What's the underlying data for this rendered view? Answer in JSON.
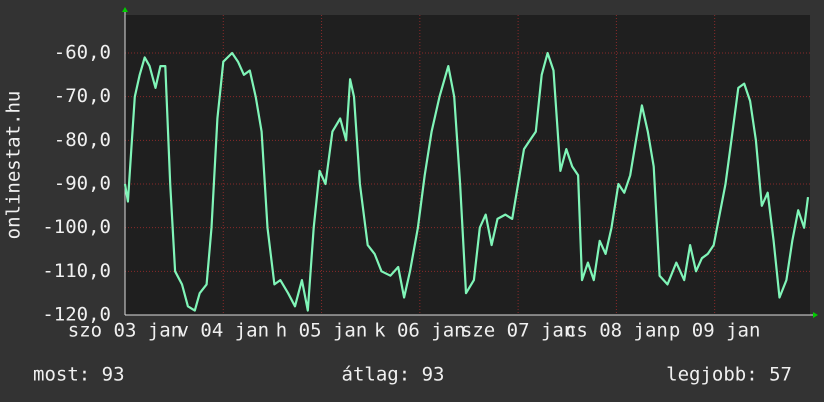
{
  "chart_data": {
    "type": "line",
    "y_label": "onlinestat.hu",
    "color": "#80f5b8",
    "grid": true,
    "xlim": [
      0,
      6.97
    ],
    "ylim": [
      -120,
      -51.3
    ],
    "xticks": [
      {
        "value": 0,
        "label": "szo 03 jan"
      },
      {
        "value": 1,
        "label": "v 04 jan"
      },
      {
        "value": 2,
        "label": "h 05 jan"
      },
      {
        "value": 3,
        "label": "k 06 jan"
      },
      {
        "value": 4,
        "label": "sze 07 jan"
      },
      {
        "value": 5,
        "label": "cs 08 jan"
      },
      {
        "value": 6,
        "label": "p 09 jan"
      }
    ],
    "yticks": [
      {
        "value": -120,
        "label": "-120,0"
      },
      {
        "value": -110,
        "label": "-110,0"
      },
      {
        "value": -100,
        "label": "-100,0"
      },
      {
        "value": -90,
        "label": "-90,0"
      },
      {
        "value": -80,
        "label": "-80,0"
      },
      {
        "value": -70,
        "label": "-70,0"
      },
      {
        "value": -60,
        "label": "-60,0"
      }
    ],
    "x": [
      0,
      0.03,
      0.07,
      0.1,
      0.15,
      0.2,
      0.25,
      0.31,
      0.36,
      0.41,
      0.46,
      0.51,
      0.58,
      0.64,
      0.71,
      0.76,
      0.83,
      0.88,
      0.94,
      1.0,
      1.09,
      1.15,
      1.21,
      1.27,
      1.33,
      1.39,
      1.45,
      1.52,
      1.58,
      1.66,
      1.73,
      1.8,
      1.86,
      1.92,
      1.98,
      2.04,
      2.11,
      2.19,
      2.25,
      2.29,
      2.33,
      2.39,
      2.47,
      2.54,
      2.61,
      2.7,
      2.78,
      2.84,
      2.9,
      2.98,
      3.05,
      3.12,
      3.2,
      3.29,
      3.35,
      3.41,
      3.47,
      3.55,
      3.61,
      3.67,
      3.73,
      3.79,
      3.87,
      3.94,
      4.0,
      4.06,
      4.12,
      4.18,
      4.24,
      4.3,
      4.36,
      4.43,
      4.49,
      4.55,
      4.61,
      4.65,
      4.71,
      4.77,
      4.83,
      4.89,
      4.95,
      5.02,
      5.08,
      5.14,
      5.2,
      5.26,
      5.32,
      5.38,
      5.44,
      5.52,
      5.61,
      5.69,
      5.75,
      5.81,
      5.87,
      5.93,
      5.99,
      6.05,
      6.11,
      6.17,
      6.24,
      6.3,
      6.36,
      6.42,
      6.48,
      6.54,
      6.6,
      6.66,
      6.73,
      6.79,
      6.85,
      6.91,
      6.95
    ],
    "values": [
      -90,
      -94,
      -80,
      -70,
      -65,
      -61,
      -63,
      -68,
      -63,
      -63,
      -90,
      -110,
      -113,
      -118,
      -119,
      -115,
      -113,
      -100,
      -75,
      -62,
      -60,
      -62,
      -65,
      -64,
      -70,
      -78,
      -100,
      -113,
      -112,
      -115,
      -118,
      -112,
      -119,
      -100,
      -87,
      -90,
      -78,
      -75,
      -80,
      -66,
      -70,
      -90,
      -104,
      -106,
      -110,
      -111,
      -109,
      -116,
      -110,
      -100,
      -88,
      -78,
      -70,
      -63,
      -70,
      -90,
      -115,
      -112,
      -100,
      -97,
      -104,
      -98,
      -97,
      -98,
      -90,
      -82,
      -80,
      -78,
      -65,
      -60,
      -64,
      -87,
      -82,
      -86,
      -88,
      -112,
      -108,
      -112,
      -103,
      -106,
      -100,
      -90,
      -92,
      -88,
      -80,
      -72,
      -78,
      -86,
      -111,
      -113,
      -108,
      -112,
      -104,
      -110,
      -107,
      -106,
      -104,
      -97,
      -90,
      -80,
      -68,
      -67,
      -71,
      -80,
      -95,
      -92,
      -103,
      -116,
      -112,
      -103,
      -96,
      -100,
      -93
    ]
  },
  "footer": {
    "items": [
      "most: 93",
      "átlag: 93",
      "legjobb: 57"
    ]
  }
}
